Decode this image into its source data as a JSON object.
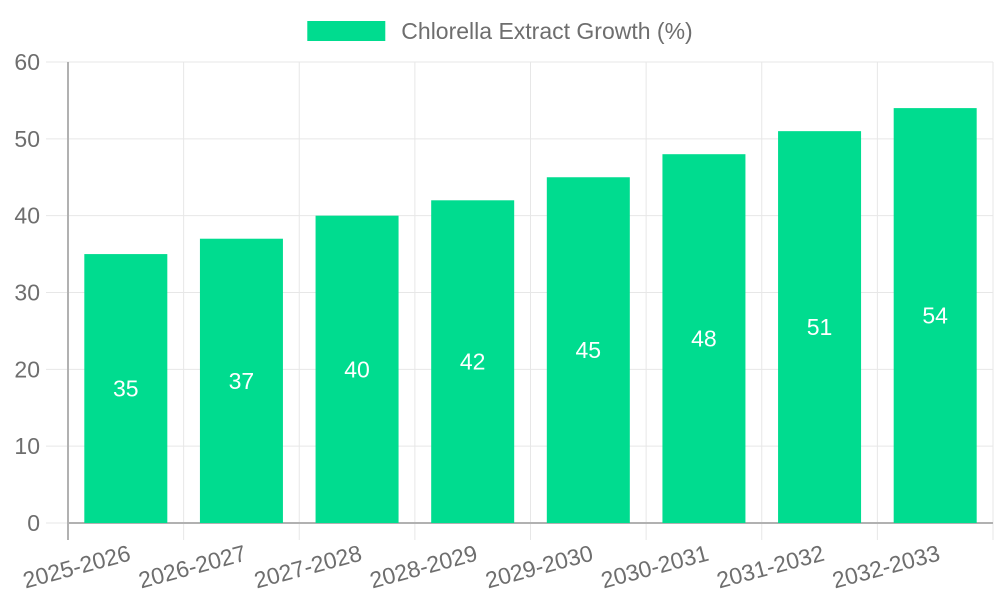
{
  "chart_data": {
    "type": "bar",
    "title": "Chlorella Extract Growth (%)",
    "legend_label": "Chlorella Extract Growth (%)",
    "legend_position": "top-center",
    "categories": [
      "2025-2026",
      "2026-2027",
      "2027-2028",
      "2028-2029",
      "2029-2030",
      "2030-2031",
      "2031-2032",
      "2032-2033"
    ],
    "values": [
      35,
      37,
      40,
      42,
      45,
      48,
      51,
      54
    ],
    "value_labels": [
      "35",
      "37",
      "40",
      "42",
      "45",
      "48",
      "51",
      "54"
    ],
    "xlabel": "",
    "ylabel": "",
    "ylim": [
      0,
      60
    ],
    "yticks": [
      0,
      10,
      20,
      30,
      40,
      50,
      60
    ],
    "grid": true,
    "x_label_rotation_deg": -15,
    "colors": {
      "bar": "#00DC8F",
      "value_label": "#ffffff",
      "axis_text": "#6e6e6e",
      "grid_line": "#e7e7e7",
      "axis_line": "#b1b1b1",
      "background": "#ffffff"
    }
  }
}
